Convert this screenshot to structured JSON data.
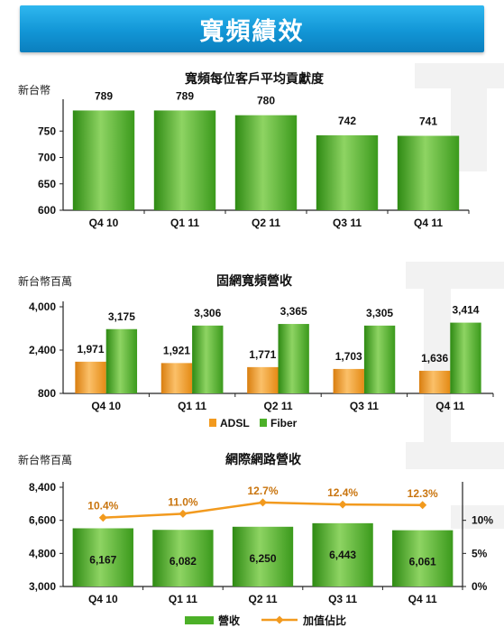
{
  "page_title": "寬頻績效",
  "chart_data": [
    {
      "type": "bar",
      "title": "寬頻每位客戶平均貢獻度",
      "unit_label": "新台幣",
      "categories": [
        "Q4 10",
        "Q1 11",
        "Q2 11",
        "Q3 11",
        "Q4 11"
      ],
      "values": [
        789,
        789,
        780,
        742,
        741
      ],
      "data_labels": [
        "789",
        "789",
        "780",
        "742",
        "741"
      ],
      "ylim": [
        600,
        800
      ],
      "yticks": [
        "600",
        "650",
        "700",
        "750"
      ],
      "colors": {
        "bar_top": "#8ed463",
        "bar_mid": "#4cb028",
        "bar_bottom": "#2e8a13"
      }
    },
    {
      "type": "bar",
      "title": "固網寬頻營收",
      "unit_label": "新台幣百萬",
      "categories": [
        "Q4 10",
        "Q1 11",
        "Q2 11",
        "Q3 11",
        "Q4 11"
      ],
      "series": [
        {
          "name": "ADSL",
          "values": [
            1971,
            1921,
            1771,
            1703,
            1636
          ],
          "data_labels": [
            "1,971",
            "1,921",
            "1,771",
            "1,703",
            "1,636"
          ],
          "color": "#f29a1e"
        },
        {
          "name": "Fiber",
          "values": [
            3175,
            3306,
            3365,
            3305,
            3414
          ],
          "data_labels": [
            "3,175",
            "3,306",
            "3,365",
            "3,305",
            "3,414"
          ],
          "color": "#4cb028"
        }
      ],
      "ylim": [
        800,
        4000
      ],
      "yticks": [
        "800",
        "2,400",
        "4,000"
      ],
      "legend_position": "bottom"
    },
    {
      "type": "bar",
      "title": "網際網路營收",
      "unit_label": "新台幣百萬",
      "categories": [
        "Q4 10",
        "Q1 11",
        "Q2 11",
        "Q3 11",
        "Q4 11"
      ],
      "series": [
        {
          "name": "營收",
          "type": "bar",
          "values": [
            6167,
            6082,
            6250,
            6443,
            6061
          ],
          "data_labels": [
            "6,167",
            "6,082",
            "6,250",
            "6,443",
            "6,061"
          ],
          "color": "#4cb028"
        },
        {
          "name": "加值佔比",
          "type": "line",
          "axis": "right",
          "values": [
            10.4,
            11.0,
            12.7,
            12.4,
            12.3
          ],
          "data_labels": [
            "10.4%",
            "11.0%",
            "12.7%",
            "12.4%",
            "12.3%"
          ],
          "color": "#f29a1e"
        }
      ],
      "ylim": [
        3000,
        8400
      ],
      "yticks": [
        "3,000",
        "4,800",
        "6,600",
        "8,400"
      ],
      "y2lim": [
        0,
        15
      ],
      "y2ticks": [
        "0%",
        "5%",
        "10%"
      ],
      "legend_position": "bottom"
    }
  ]
}
